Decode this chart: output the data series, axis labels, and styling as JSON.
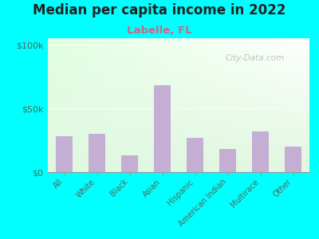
{
  "title": "Median per capita income in 2022",
  "subtitle": "Labelle, FL",
  "categories": [
    "All",
    "White",
    "Black",
    "Asian",
    "Hispanic",
    "American Indian",
    "Multirace",
    "Other"
  ],
  "values": [
    28000,
    30000,
    13000,
    68000,
    27000,
    18000,
    32000,
    20000
  ],
  "bar_color": "#c4aed4",
  "background_color": "#00ffff",
  "title_fontsize": 12,
  "subtitle_fontsize": 9.5,
  "subtitle_color": "#cc6688",
  "tick_label_color": "#556655",
  "yticks": [
    0,
    50000,
    100000
  ],
  "ytick_labels": [
    "$0",
    "$50k",
    "$100k"
  ],
  "watermark": "City-Data.com",
  "ylim": [
    0,
    105000
  ]
}
